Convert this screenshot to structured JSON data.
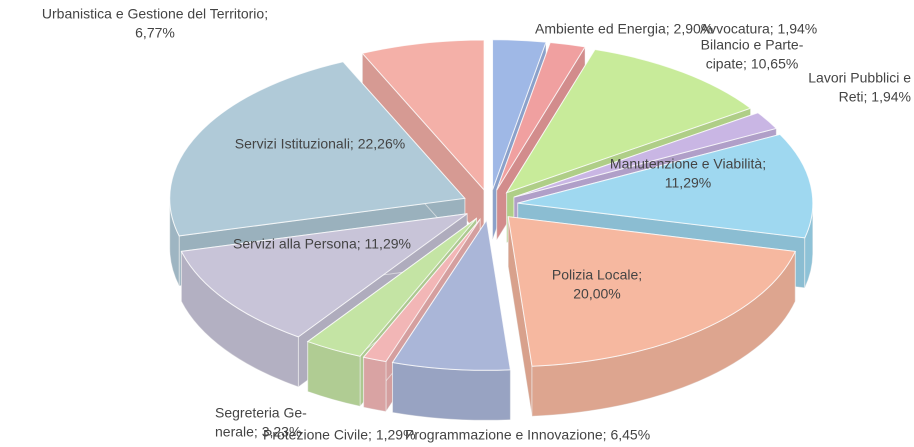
{
  "chart_data": {
    "type": "pie3d",
    "labels": [
      [
        "Ambiente ed Energia; 2,90%"
      ],
      [
        "Avvocatura; 1,94%"
      ],
      [
        "Bilancio e Parte-",
        "cipate; 10,65%"
      ],
      [
        "Lavori Pubblici e",
        "Reti; 1,94%"
      ],
      [
        "Manutenzione e Viabilità;",
        "11,29%"
      ],
      [
        "Polizia Locale;",
        "20,00%"
      ],
      [
        "Programmazione e Innovazione; 6,45%"
      ],
      [
        "Protezione Civile; 1,29%"
      ],
      [
        "Segreteria Ge-",
        "nerale; 3,23%"
      ],
      [
        "Servizi alla Persona; 11,29%"
      ],
      [
        "Servizi Istituzionali; 22,26%"
      ],
      [
        "Urbanistica e Gestione del Territorio;",
        "6,77%"
      ]
    ],
    "values": [
      2.9,
      1.94,
      10.65,
      1.94,
      11.29,
      20.0,
      6.45,
      1.29,
      3.23,
      11.29,
      22.26,
      6.77
    ],
    "colors": [
      "#9fb8e6",
      "#f0a0a0",
      "#c8eb9a",
      "#c9b6e4",
      "#9fd8f0",
      "#f6b8a0",
      "#aab6d8",
      "#f2b6b6",
      "#c4e4a4",
      "#c8c4d8",
      "#b0cad8",
      "#f4b0a8"
    ]
  }
}
